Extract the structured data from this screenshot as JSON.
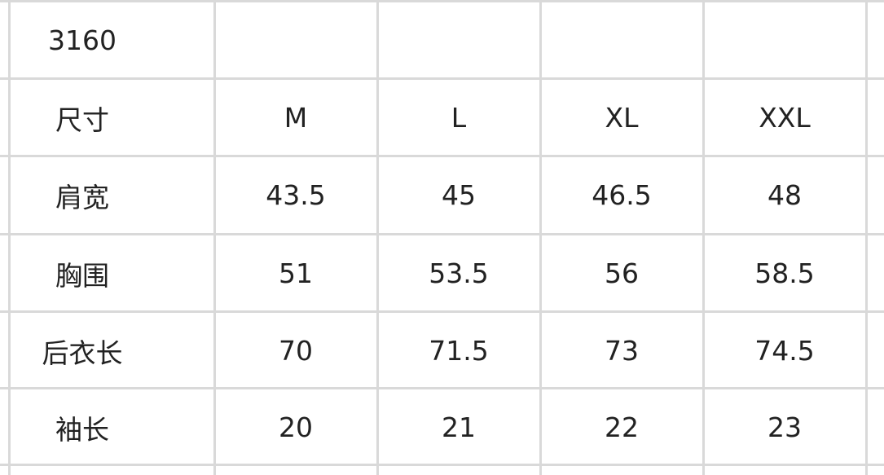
{
  "table": {
    "rows": [
      [
        "3160",
        "",
        "",
        "",
        ""
      ],
      [
        "尺寸",
        "M",
        "L",
        "XL",
        "XXL"
      ],
      [
        "肩宽",
        "43.5",
        "45",
        "46.5",
        "48"
      ],
      [
        "胸围",
        "51",
        "53.5",
        "56",
        "58.5"
      ],
      [
        "后衣长",
        "70",
        "71.5",
        "73",
        "74.5"
      ],
      [
        "袖长",
        "20",
        "21",
        "22",
        "23"
      ]
    ]
  }
}
